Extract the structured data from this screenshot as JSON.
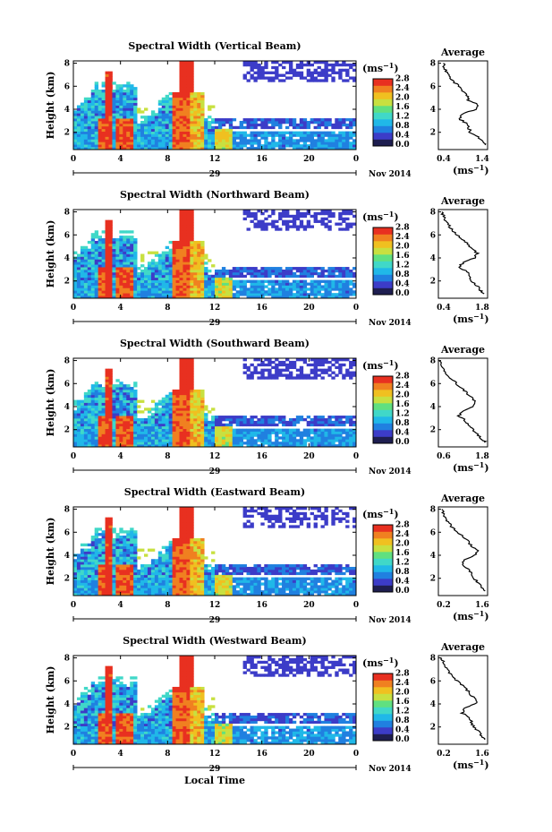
{
  "figure": {
    "colorbar_unit": "(ms",
    "unit_exponent": "−1",
    "avg_unit": "(ms",
    "date_label": "Nov 2014",
    "day_label": "29",
    "xlabel": "Local Time",
    "ylabel": "Height (km)",
    "avg_title": "Average",
    "x_ticks": [
      "0",
      "4",
      "8",
      "12",
      "16",
      "20",
      "0"
    ],
    "y_ticks": [
      "2",
      "4",
      "6",
      "8"
    ],
    "avg_y_ticks": [
      "2",
      "4",
      "6",
      "8"
    ],
    "colorbar_ticks": [
      "0.0",
      "0.4",
      "0.8",
      "1.2",
      "1.6",
      "2.0",
      "2.4",
      "2.8"
    ]
  },
  "chart_data": [
    {
      "type": "heatmap",
      "title": "Spectral Width (Vertical Beam)",
      "xlim": [
        0,
        24
      ],
      "ylim": [
        0.5,
        8.2
      ],
      "zlim": [
        0,
        2.8
      ],
      "avg": {
        "title": "Average",
        "xlim": [
          0.4,
          1.4
        ],
        "xticks": [
          "0.4",
          "1.4"
        ],
        "heights": [
          0.9,
          1.2,
          1.6,
          2.0,
          2.4,
          2.8,
          3.2,
          3.6,
          4.0,
          4.4,
          4.8,
          5.2,
          5.6,
          6.0,
          6.4,
          6.8,
          7.2,
          7.6,
          8.0
        ],
        "values": [
          1.35,
          1.28,
          1.2,
          1.05,
          1.02,
          0.95,
          0.82,
          0.9,
          1.15,
          1.2,
          1.0,
          0.98,
          0.9,
          0.82,
          0.7,
          0.62,
          0.58,
          0.52,
          0.5
        ]
      }
    },
    {
      "type": "heatmap",
      "title": "Spectral Width (Northward Beam)",
      "xlim": [
        0,
        24
      ],
      "ylim": [
        0.5,
        8.2
      ],
      "zlim": [
        0,
        2.8
      ],
      "avg": {
        "title": "Average",
        "xlim": [
          0.4,
          1.8
        ],
        "xticks": [
          "0.4",
          "1.8"
        ],
        "heights": [
          0.9,
          1.2,
          1.6,
          2.0,
          2.4,
          2.8,
          3.2,
          3.6,
          4.0,
          4.4,
          4.8,
          5.2,
          5.6,
          6.0,
          6.4,
          6.8,
          7.2,
          7.6,
          8.0
        ],
        "values": [
          1.7,
          1.6,
          1.5,
          1.35,
          1.3,
          1.2,
          1.0,
          1.1,
          1.45,
          1.5,
          1.35,
          1.25,
          1.1,
          0.95,
          0.8,
          0.7,
          0.62,
          0.55,
          0.5
        ]
      }
    },
    {
      "type": "heatmap",
      "title": "Spectral Width (Southward Beam)",
      "xlim": [
        0,
        24
      ],
      "ylim": [
        0.5,
        8.2
      ],
      "zlim": [
        0,
        2.8
      ],
      "avg": {
        "title": "Average",
        "xlim": [
          0.6,
          1.8
        ],
        "xticks": [
          "0.6",
          "1.8"
        ],
        "heights": [
          0.9,
          1.2,
          1.6,
          2.0,
          2.4,
          2.8,
          3.2,
          3.6,
          4.0,
          4.4,
          4.8,
          5.2,
          5.6,
          6.0,
          6.4,
          6.8,
          7.2,
          7.6,
          8.0
        ],
        "values": [
          1.75,
          1.65,
          1.55,
          1.45,
          1.35,
          1.25,
          1.1,
          1.2,
          1.45,
          1.5,
          1.4,
          1.3,
          1.15,
          1.05,
          0.9,
          0.8,
          0.72,
          0.66,
          0.62
        ]
      }
    },
    {
      "type": "heatmap",
      "title": "Spectral Width (Eastward Beam)",
      "xlim": [
        0,
        24
      ],
      "ylim": [
        0.5,
        8.2
      ],
      "zlim": [
        0,
        2.8
      ],
      "avg": {
        "title": "Average",
        "xlim": [
          0.2,
          1.6
        ],
        "xticks": [
          "0.2",
          "1.6"
        ],
        "heights": [
          0.9,
          1.2,
          1.6,
          2.0,
          2.4,
          2.8,
          3.2,
          3.6,
          4.0,
          4.4,
          4.8,
          5.2,
          5.6,
          6.0,
          6.4,
          6.8,
          7.2,
          7.6,
          8.0
        ],
        "values": [
          1.5,
          1.42,
          1.35,
          1.2,
          1.15,
          1.05,
          0.9,
          0.95,
          1.25,
          1.3,
          1.15,
          1.05,
          0.9,
          0.75,
          0.6,
          0.5,
          0.42,
          0.35,
          0.3
        ]
      }
    },
    {
      "type": "heatmap",
      "title": "Spectral Width (Westward Beam)",
      "xlim": [
        0,
        24
      ],
      "ylim": [
        0.5,
        8.2
      ],
      "zlim": [
        0,
        2.8
      ],
      "avg": {
        "title": "Average",
        "xlim": [
          0.2,
          1.6
        ],
        "xticks": [
          "0.2",
          "1.6"
        ],
        "heights": [
          0.9,
          1.2,
          1.6,
          2.0,
          2.4,
          2.8,
          3.2,
          3.6,
          4.0,
          4.4,
          4.8,
          5.2,
          5.6,
          6.0,
          6.4,
          6.8,
          7.2,
          7.6,
          8.0
        ],
        "values": [
          1.55,
          1.45,
          1.35,
          1.2,
          1.15,
          1.05,
          0.88,
          0.95,
          1.25,
          1.3,
          1.12,
          1.02,
          0.88,
          0.72,
          0.58,
          0.48,
          0.4,
          0.34,
          0.3
        ]
      }
    }
  ],
  "colors": {
    "scale": [
      "#1e1e50",
      "#3c3cc8",
      "#2080e0",
      "#20b8e8",
      "#40d8c8",
      "#60e080",
      "#c8e040",
      "#f0c020",
      "#f08020",
      "#e83020"
    ]
  }
}
